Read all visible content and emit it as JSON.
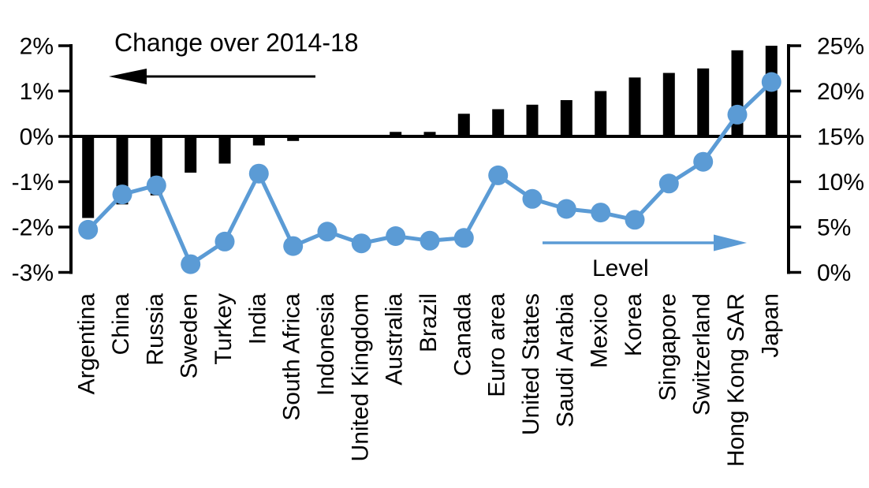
{
  "chart_data": {
    "type": "combo-bar-line",
    "title": "Change over 2014-18",
    "categories": [
      "Argentina",
      "China",
      "Russia",
      "Sweden",
      "Turkey",
      "India",
      "South Africa",
      "Indonesia",
      "United Kingdom",
      "Australia",
      "Brazil",
      "Canada",
      "Euro area",
      "United States",
      "Saudi Arabia",
      "Mexico",
      "Korea",
      "Singapore",
      "Switzerland",
      "Hong Kong SAR",
      "Japan"
    ],
    "series": [
      {
        "name": "Change over 2014-18",
        "type": "bar",
        "axis": "left",
        "color": "#000000",
        "values": [
          -1.8,
          -1.5,
          -1.3,
          -0.8,
          -0.6,
          -0.2,
          -0.1,
          0.0,
          0.0,
          0.1,
          0.1,
          0.5,
          0.6,
          0.7,
          0.8,
          1.0,
          1.3,
          1.4,
          1.5,
          1.9,
          2.0
        ]
      },
      {
        "name": "Level",
        "type": "line",
        "axis": "right",
        "color": "#5B9BD5",
        "values": [
          4.7,
          8.6,
          9.6,
          0.9,
          3.4,
          10.9,
          2.9,
          4.5,
          3.2,
          4.0,
          3.5,
          3.8,
          10.7,
          8.1,
          7.0,
          6.6,
          5.8,
          9.8,
          12.2,
          17.4,
          21.0
        ]
      }
    ],
    "left_axis": {
      "min": -3,
      "max": 2,
      "tick_values": [
        2,
        1,
        0,
        -1,
        -2,
        -3
      ],
      "tick_labels": [
        "2%",
        "1%",
        "0%",
        "-1%",
        "-2%",
        "-3%"
      ]
    },
    "right_axis": {
      "min": 0,
      "max": 25,
      "tick_values": [
        25,
        20,
        15,
        10,
        5,
        0
      ],
      "tick_labels": [
        "25%",
        "20%",
        "15%",
        "10%",
        "5%",
        "0%"
      ]
    },
    "annotations": {
      "bar_series_label": {
        "text": "Change over 2014-18",
        "arrow": "left",
        "color": "#000000"
      },
      "line_series_label": {
        "text": "Level",
        "arrow": "right",
        "color": "#5B9BD5"
      }
    },
    "grid": "off",
    "legend": "none"
  }
}
